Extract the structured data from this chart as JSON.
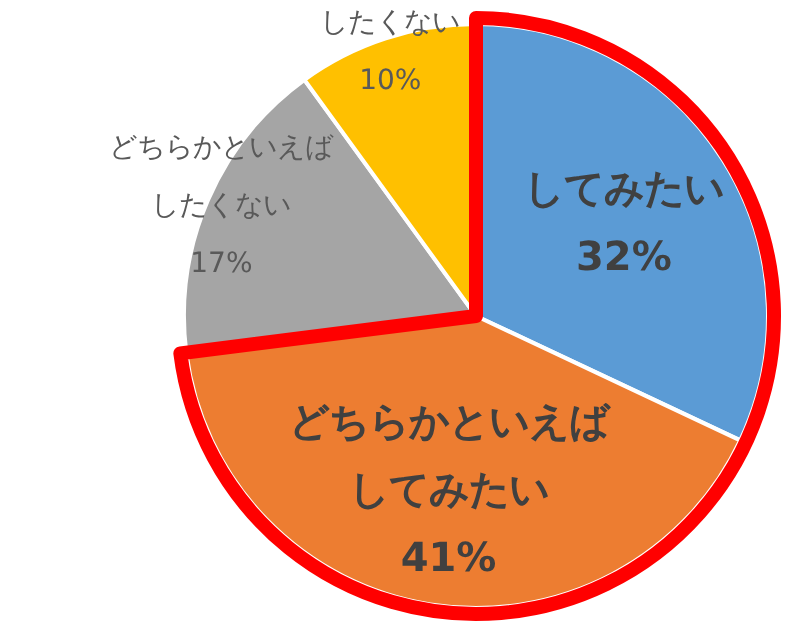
{
  "chart_data": {
    "type": "pie",
    "categories": [
      "してみたい",
      "どちらかといえばしてみたい",
      "どちらかといえばしたくない",
      "したくない"
    ],
    "values": [
      32,
      41,
      17,
      10
    ],
    "colors": [
      "#5b9bd5",
      "#ed7d31",
      "#a5a5a5",
      "#ffc000"
    ],
    "value_labels": [
      "32%",
      "41%",
      "17%",
      "10%"
    ]
  }
}
